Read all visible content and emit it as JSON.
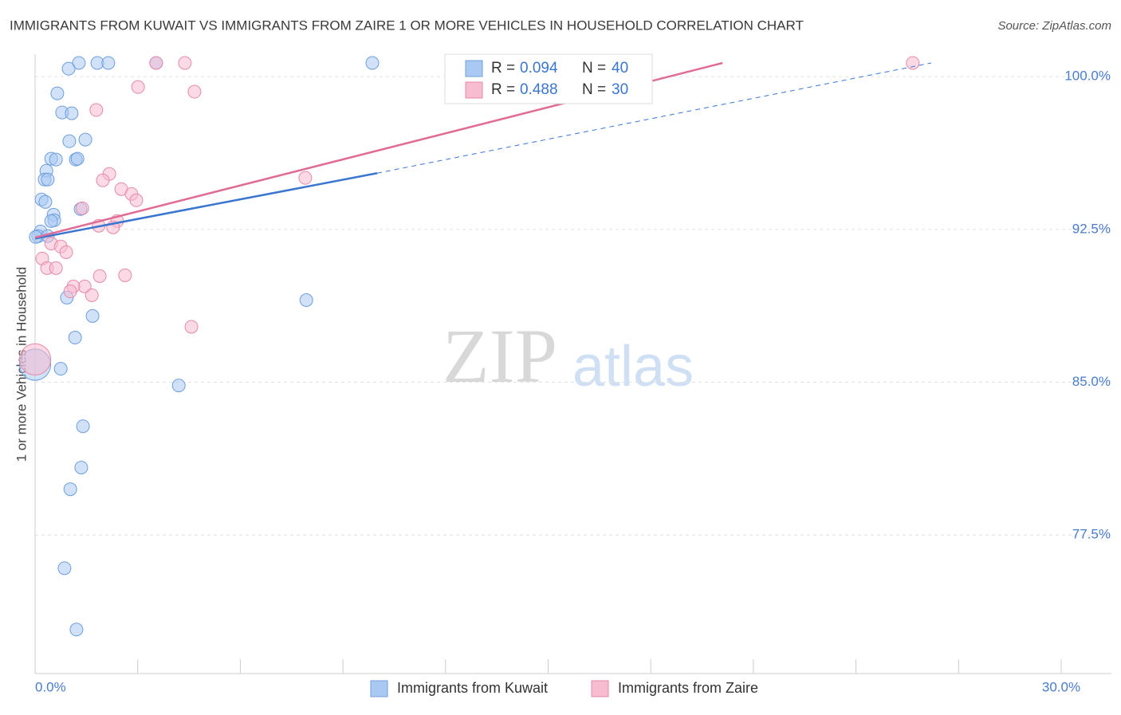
{
  "chart_data": {
    "type": "scatter",
    "title": "IMMIGRANTS FROM KUWAIT VS IMMIGRANTS FROM ZAIRE 1 OR MORE VEHICLES IN HOUSEHOLD CORRELATION CHART",
    "source": "Source: ZipAtlas.com",
    "y_label": "1 or more Vehicles in Household",
    "watermark": [
      "ZIP",
      "atlas"
    ],
    "legend_r_label": "R =",
    "legend_n_label": "N =",
    "xlim": [
      0,
      30
    ],
    "ylim": [
      70.7,
      101.1
    ],
    "xticks": [
      {
        "value": 0,
        "label": "0.0%"
      },
      {
        "value": 3,
        "label": null
      },
      {
        "value": 6,
        "label": null
      },
      {
        "value": 9,
        "label": null
      },
      {
        "value": 12,
        "label": null
      },
      {
        "value": 15,
        "label": null
      },
      {
        "value": 18,
        "label": null
      },
      {
        "value": 21,
        "label": null
      },
      {
        "value": 24,
        "label": null
      },
      {
        "value": 27,
        "label": null
      },
      {
        "value": 30,
        "label": "30.0%"
      }
    ],
    "yticks": [
      {
        "value": 77.5,
        "label": "77.5%"
      },
      {
        "value": 85,
        "label": "85.0%"
      },
      {
        "value": 92.5,
        "label": "92.5%"
      },
      {
        "value": 100,
        "label": "100.0%"
      }
    ],
    "grid": true,
    "series": [
      {
        "name": "Immigrants from Kuwait",
        "color": "#a9c9f2",
        "stroke": "#6d9fdd",
        "line_color": "#3a76cf",
        "r": 0.094,
        "n": 40,
        "x": [
          1.28,
          1.82,
          2.14,
          3.54,
          9.86,
          0.98,
          0.65,
          0.79,
          1.07,
          1.47,
          1.0,
          0.47,
          0.61,
          1.19,
          1.24,
          0.33,
          0.28,
          0.37,
          0.19,
          0.3,
          0.54,
          0.56,
          0.47,
          1.33,
          0.16,
          0.09,
          0.37,
          0.02,
          0.93,
          1.68,
          7.93,
          1.17,
          0,
          0.75,
          4.2,
          1.4,
          1.35,
          1.03,
          0.86,
          1.21
        ],
        "values": [
          100.67,
          100.67,
          100.67,
          100.67,
          100.67,
          100.39,
          99.18,
          98.24,
          98.2,
          96.91,
          96.83,
          95.97,
          95.93,
          95.93,
          95.97,
          95.38,
          94.95,
          94.95,
          93.97,
          93.85,
          93.22,
          92.95,
          92.91,
          93.5,
          92.4,
          92.17,
          92.17,
          92.13,
          89.15,
          88.25,
          89.03,
          87.19,
          85.86,
          85.66,
          84.84,
          82.84,
          80.81,
          79.75,
          75.87,
          72.86
        ],
        "sizes": [
          1,
          1,
          1,
          1,
          1,
          1,
          1,
          1,
          1,
          1,
          1,
          1,
          1,
          1,
          1,
          1,
          1,
          1,
          1,
          1,
          1,
          1,
          1,
          1,
          1,
          1,
          1,
          1,
          1,
          1,
          1,
          1,
          6,
          1,
          1,
          1,
          1,
          1,
          1,
          1
        ],
        "trend_solid": {
          "x": [
            0,
            10
          ],
          "values": [
            92.05,
            95.26
          ]
        },
        "trend_dashed": {
          "x": [
            10,
            26.2
          ],
          "values": [
            95.26,
            100.67
          ]
        }
      },
      {
        "name": "Immigrants from Zaire",
        "color": "#f7bccf",
        "stroke": "#e68aa9",
        "line_color": "#e06c96",
        "r": 0.488,
        "n": 30,
        "x": [
          3.54,
          4.38,
          25.66,
          3.01,
          4.66,
          1.79,
          2.17,
          1.98,
          7.9,
          2.52,
          2.82,
          2.96,
          1.38,
          2.4,
          1.86,
          2.28,
          0.47,
          0.75,
          0.91,
          0.21,
          0.35,
          0.61,
          2.63,
          1.89,
          1.45,
          1.12,
          1.03,
          1.66,
          4.57,
          0
        ],
        "values": [
          100.67,
          100.67,
          100.67,
          99.49,
          99.26,
          98.36,
          95.22,
          94.91,
          95.03,
          94.48,
          94.24,
          93.93,
          93.54,
          92.91,
          92.68,
          92.6,
          91.81,
          91.66,
          91.38,
          91.07,
          90.6,
          90.6,
          90.25,
          90.21,
          89.7,
          89.7,
          89.46,
          89.27,
          87.72,
          86.12
        ],
        "sizes": [
          1,
          1,
          1,
          1,
          1,
          1,
          1,
          1,
          1,
          1,
          1,
          1,
          1,
          1,
          1,
          1,
          1,
          1,
          1,
          1,
          1,
          1,
          1,
          1,
          1,
          1,
          1,
          1,
          1,
          6
        ],
        "trend_solid": {
          "x": [
            0,
            20.1
          ],
          "values": [
            92.1,
            100.67
          ]
        }
      }
    ]
  }
}
